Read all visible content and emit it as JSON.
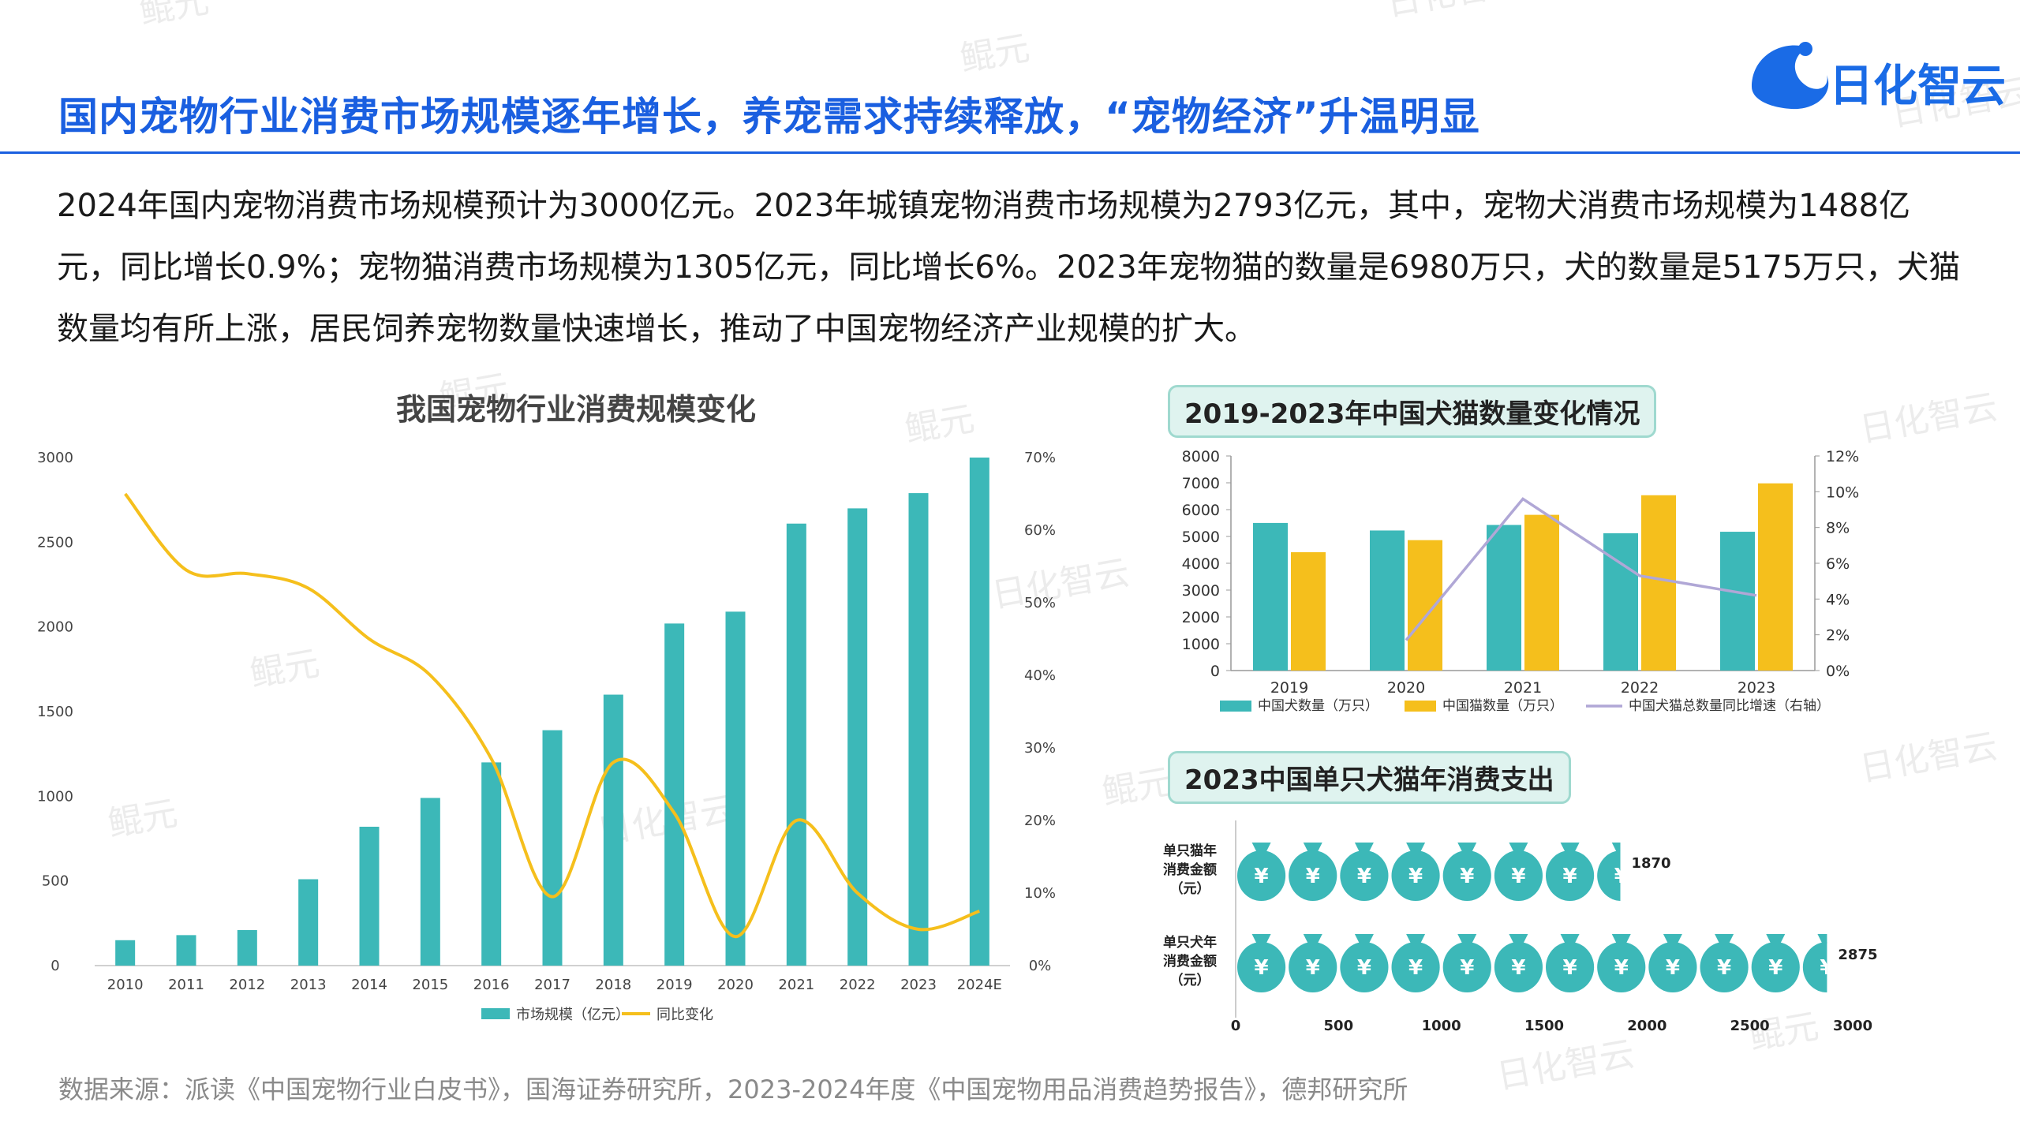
{
  "header": {
    "title": "国内宠物行业消费市场规模逐年增长，养宠需求持续释放，“宠物经济”升温明显",
    "logo_text": "日化智云"
  },
  "intro": "2024年国内宠物消费市场规模预计为3000亿元。2023年城镇宠物消费市场规模为2793亿元，其中，宠物犬消费市场规模为1488亿元，同比增长0.9%；宠物猫消费市场规模为1305亿元，同比增长6%。2023年宠物猫的数量是6980万只，犬的数量是5175万只，犬猫数量均有所上涨，居民饲养宠物数量快速增长，推动了中国宠物经济产业规模的扩大。",
  "source": "数据来源：派读《中国宠物行业白皮书》，国海证券研究所，2023-2024年度《中国宠物用品消费趋势报告》，德邦研究所",
  "watermark": [
    "鲲元",
    "日化智云"
  ],
  "colors": {
    "teal": "#3cb8b8",
    "yellow": "#f5bf1c",
    "lavender": "#b0a7d6",
    "blue": "#1a5fe0"
  },
  "chart_data": [
    {
      "type": "bar",
      "title": "我国宠物行业消费规模变化",
      "categories": [
        "2010",
        "2011",
        "2012",
        "2013",
        "2014",
        "2015",
        "2016",
        "2017",
        "2018",
        "2019",
        "2020",
        "2021",
        "2022",
        "2023",
        "2024E"
      ],
      "series": [
        {
          "name": "市场规模（亿元）",
          "type": "bar",
          "axis": "left",
          "values": [
            150,
            180,
            210,
            510,
            820,
            990,
            1200,
            1390,
            1600,
            2020,
            2090,
            2610,
            2700,
            2790,
            3000
          ]
        },
        {
          "name": "同比变化",
          "type": "line",
          "axis": "right",
          "values": [
            65,
            54.5,
            54,
            52,
            45,
            40,
            28.5,
            9.5,
            28,
            21,
            4,
            20,
            10,
            5,
            7.5
          ]
        }
      ],
      "y_left": {
        "ticks": [
          "0",
          "500",
          "1000",
          "1500",
          "2000",
          "2500",
          "3000"
        ],
        "ylim": [
          0,
          3000
        ]
      },
      "y_right": {
        "ticks": [
          "0%",
          "10%",
          "20%",
          "30%",
          "40%",
          "50%",
          "60%",
          "70%"
        ],
        "ylim": [
          0,
          70
        ]
      },
      "legend": [
        "市场规模（亿元）",
        "同比变化"
      ]
    },
    {
      "type": "bar",
      "title": "2019-2023年中国犬猫数量变化情况",
      "categories": [
        "2019",
        "2020",
        "2021",
        "2022",
        "2023"
      ],
      "series": [
        {
          "name": "中国犬数量（万只）",
          "type": "bar",
          "axis": "left",
          "values": [
            5503,
            5222,
            5429,
            5119,
            5175
          ]
        },
        {
          "name": "中国猫数量（万只）",
          "type": "bar",
          "axis": "left",
          "values": [
            4412,
            4862,
            5806,
            6536,
            6980
          ]
        },
        {
          "name": "中国犬猫总数量同比增速（右轴）",
          "type": "line",
          "axis": "right",
          "values": [
            null,
            1.7,
            9.6,
            5.3,
            4.2
          ]
        }
      ],
      "y_left": {
        "ticks": [
          "0",
          "1000",
          "2000",
          "3000",
          "4000",
          "5000",
          "6000",
          "7000",
          "8000"
        ],
        "ylim": [
          0,
          8000
        ]
      },
      "y_right": {
        "ticks": [
          "0%",
          "2%",
          "4%",
          "6%",
          "8%",
          "10%",
          "12%"
        ],
        "ylim": [
          0,
          12
        ]
      },
      "legend": [
        "中国犬数量（万只）",
        "中国猫数量（万只）",
        "中国犬猫总数量同比增速（右轴）"
      ]
    },
    {
      "type": "bar",
      "title": "2023中国单只犬猫年消费支出",
      "categories": [
        "单只猫年消费金额（元）",
        "单只犬年消费金额（元）"
      ],
      "category_lines": [
        [
          "单只猫年",
          "消费金额",
          "（元）"
        ],
        [
          "单只犬年",
          "消费金额",
          "（元）"
        ]
      ],
      "values": [
        1870,
        2875
      ],
      "value_labels": [
        "1870",
        "2875"
      ],
      "x_ticks": [
        "0",
        "500",
        "1000",
        "1500",
        "2000",
        "2500",
        "3000"
      ],
      "xlim": [
        0,
        3000
      ],
      "unit_icon": "money-bag-icon",
      "icon_glyph": "¥"
    }
  ]
}
